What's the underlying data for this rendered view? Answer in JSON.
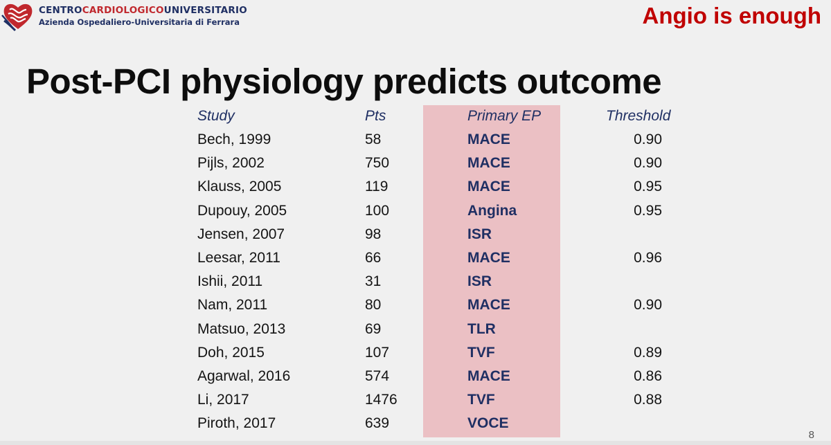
{
  "header": {
    "org_name_pre": "CENTRO",
    "org_name_mid": "CARDIOLOGICO",
    "org_name_post": "UNIVERSITARIO",
    "org_subtitle": "Azienda Ospedaliero-Universitaria di Ferrara",
    "tagline": "Angio is enough"
  },
  "title": "Post-PCI physiology predicts outcome",
  "table": {
    "headers": {
      "study": "Study",
      "pts": "Pts",
      "ep": "Primary EP",
      "threshold": "Threshold"
    },
    "rows": [
      {
        "study": "Bech, 1999",
        "pts": "58",
        "ep": "MACE",
        "threshold": "0.90"
      },
      {
        "study": "Pijls, 2002",
        "pts": "750",
        "ep": "MACE",
        "threshold": "0.90"
      },
      {
        "study": "Klauss, 2005",
        "pts": "119",
        "ep": "MACE",
        "threshold": "0.95"
      },
      {
        "study": "Dupouy, 2005",
        "pts": "100",
        "ep": "Angina",
        "threshold": "0.95"
      },
      {
        "study": "Jensen, 2007",
        "pts": "98",
        "ep": "ISR",
        "threshold": ""
      },
      {
        "study": "Leesar, 2011",
        "pts": "66",
        "ep": "MACE",
        "threshold": "0.96"
      },
      {
        "study": "Ishii, 2011",
        "pts": "31",
        "ep": "ISR",
        "threshold": ""
      },
      {
        "study": "Nam, 2011",
        "pts": "80",
        "ep": "MACE",
        "threshold": "0.90"
      },
      {
        "study": "Matsuo, 2013",
        "pts": "69",
        "ep": "TLR",
        "threshold": ""
      },
      {
        "study": "Doh, 2015",
        "pts": "107",
        "ep": "TVF",
        "threshold": "0.89"
      },
      {
        "study": "Agarwal, 2016",
        "pts": "574",
        "ep": "MACE",
        "threshold": "0.86"
      },
      {
        "study": "Li, 2017",
        "pts": "1476",
        "ep": "TVF",
        "threshold": "0.88"
      },
      {
        "study": "Piroth, 2017",
        "pts": "639",
        "ep": "VOCE",
        "threshold": ""
      }
    ]
  },
  "page_number": "8",
  "colors": {
    "navy": "#1f2f63",
    "red": "#c00000",
    "highlight": "#ebc0c4"
  },
  "icons": {
    "logo": "heart-logo-icon"
  }
}
